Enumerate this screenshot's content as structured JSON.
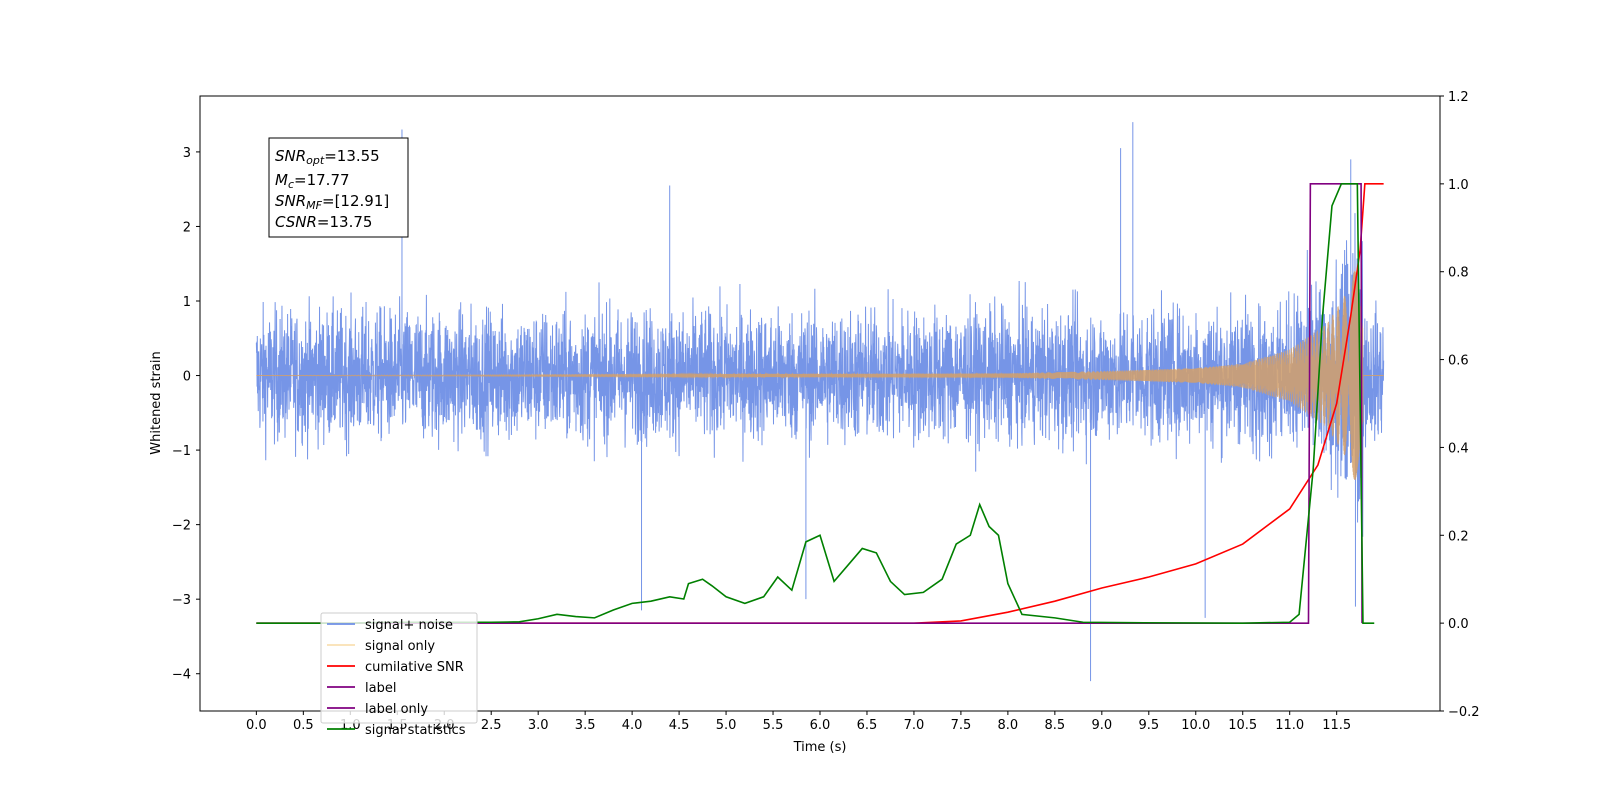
{
  "chart_data": {
    "type": "line",
    "xlabel": "Time (s)",
    "ylabel": "Whitened strain",
    "xlim": [
      -0.6,
      12.6
    ],
    "ylim_left": [
      -4.5,
      3.75
    ],
    "ylim_right": [
      -0.2,
      1.2
    ],
    "x_ticks": [
      "0.0",
      "0.5",
      "1.0",
      "1.5",
      "2.0",
      "2.5",
      "3.0",
      "3.5",
      "4.0",
      "4.5",
      "5.0",
      "5.5",
      "6.0",
      "6.5",
      "7.0",
      "7.5",
      "8.0",
      "8.5",
      "9.0",
      "9.5",
      "10.0",
      "10.5",
      "11.0",
      "11.5"
    ],
    "y_ticks_left": [
      "3",
      "2",
      "1",
      "0",
      "−1",
      "−2",
      "−3",
      "−4"
    ],
    "y_ticks_right": [
      "1.2",
      "1.0",
      "0.8",
      "0.6",
      "0.4",
      "0.2",
      "0.0",
      "−0.2"
    ],
    "annotation": {
      "snr_opt": {
        "base": "SNR",
        "sub": "opt",
        "value": "=13.55"
      },
      "mc": {
        "base": "M",
        "sub": "c",
        "value": "=17.77"
      },
      "snr_mf": {
        "base": "SNR",
        "sub": "MF",
        "value": "=[12.91]"
      },
      "csnr": {
        "base": "CSNR",
        "value": "=13.75"
      }
    },
    "legend": {
      "location": "lower-left",
      "entries": [
        {
          "label": "signal+ noise",
          "color": "#6f8fe6"
        },
        {
          "label": "signal only",
          "color": "#f5c065"
        },
        {
          "label": "cumilative SNR",
          "color": "#ff0000"
        },
        {
          "label": "label",
          "color": "#800080"
        },
        {
          "label": "label only",
          "color": "#800080"
        },
        {
          "label": "signal statistics",
          "color": "#008000"
        }
      ]
    },
    "series": [
      {
        "name": "signal+ noise",
        "axis": "left",
        "color": "#6f8fe6",
        "note_shape": "dense noise, amplitude approx ±1.5 with peaks to ±3, on t 0 to 12",
        "peak_high": [
          [
            1.55,
            3.3
          ],
          [
            9.33,
            3.4
          ],
          [
            9.2,
            3.05
          ],
          [
            11.65,
            2.9
          ],
          [
            4.4,
            2.55
          ]
        ],
        "peak_low": [
          [
            8.88,
            -4.1
          ],
          [
            4.1,
            -3.15
          ],
          [
            10.1,
            -3.25
          ],
          [
            11.7,
            -3.1
          ],
          [
            5.85,
            -3.0
          ]
        ]
      },
      {
        "name": "signal only",
        "axis": "left",
        "color": "#d4a06a",
        "chirp_end": 11.78,
        "envelope": [
          [
            0.0,
            0.0
          ],
          [
            8.0,
            0.03
          ],
          [
            9.0,
            0.06
          ],
          [
            10.0,
            0.1
          ],
          [
            10.5,
            0.16
          ],
          [
            11.0,
            0.35
          ],
          [
            11.4,
            0.7
          ],
          [
            11.6,
            1.1
          ],
          [
            11.75,
            1.6
          ]
        ]
      },
      {
        "name": "cumilative SNR",
        "axis": "right",
        "color": "#ff0000",
        "points": [
          [
            0.0,
            0.0
          ],
          [
            6.5,
            0.0
          ],
          [
            7.0,
            0.0
          ],
          [
            7.5,
            0.005
          ],
          [
            8.0,
            0.025
          ],
          [
            8.5,
            0.05
          ],
          [
            9.0,
            0.08
          ],
          [
            9.5,
            0.105
          ],
          [
            10.0,
            0.135
          ],
          [
            10.5,
            0.18
          ],
          [
            11.0,
            0.26
          ],
          [
            11.3,
            0.36
          ],
          [
            11.5,
            0.5
          ],
          [
            11.65,
            0.7
          ],
          [
            11.75,
            0.85
          ],
          [
            11.8,
            1.0
          ],
          [
            12.0,
            1.0
          ]
        ]
      },
      {
        "name": "label",
        "axis": "right",
        "color": "#800080",
        "points": [
          [
            0.0,
            0.0
          ],
          [
            11.2,
            0.0
          ],
          [
            11.22,
            1.0
          ],
          [
            11.76,
            1.0
          ],
          [
            11.77,
            0.0
          ]
        ]
      },
      {
        "name": "signal statistics",
        "axis": "right",
        "color": "#008000",
        "points": [
          [
            0.0,
            0.0
          ],
          [
            1.0,
            0.0
          ],
          [
            1.4,
            0.002
          ],
          [
            2.5,
            0.002
          ],
          [
            2.8,
            0.003
          ],
          [
            3.0,
            0.01
          ],
          [
            3.2,
            0.02
          ],
          [
            3.4,
            0.015
          ],
          [
            3.6,
            0.012
          ],
          [
            3.8,
            0.03
          ],
          [
            4.0,
            0.045
          ],
          [
            4.2,
            0.05
          ],
          [
            4.4,
            0.06
          ],
          [
            4.55,
            0.055
          ],
          [
            4.6,
            0.09
          ],
          [
            4.75,
            0.1
          ],
          [
            4.85,
            0.085
          ],
          [
            5.0,
            0.06
          ],
          [
            5.2,
            0.045
          ],
          [
            5.4,
            0.06
          ],
          [
            5.55,
            0.105
          ],
          [
            5.7,
            0.075
          ],
          [
            5.85,
            0.185
          ],
          [
            6.0,
            0.2
          ],
          [
            6.15,
            0.095
          ],
          [
            6.35,
            0.145
          ],
          [
            6.45,
            0.17
          ],
          [
            6.6,
            0.16
          ],
          [
            6.75,
            0.095
          ],
          [
            6.9,
            0.065
          ],
          [
            7.1,
            0.07
          ],
          [
            7.3,
            0.1
          ],
          [
            7.45,
            0.18
          ],
          [
            7.6,
            0.2
          ],
          [
            7.7,
            0.27
          ],
          [
            7.8,
            0.22
          ],
          [
            7.9,
            0.2
          ],
          [
            8.0,
            0.09
          ],
          [
            8.15,
            0.02
          ],
          [
            8.5,
            0.012
          ],
          [
            8.8,
            0.002
          ],
          [
            9.3,
            0.001
          ],
          [
            10.5,
            0.0
          ],
          [
            11.0,
            0.002
          ],
          [
            11.1,
            0.02
          ],
          [
            11.25,
            0.35
          ],
          [
            11.35,
            0.7
          ],
          [
            11.45,
            0.95
          ],
          [
            11.55,
            1.0
          ],
          [
            11.72,
            1.0
          ],
          [
            11.78,
            0.0
          ],
          [
            11.9,
            0.0
          ]
        ]
      }
    ]
  }
}
